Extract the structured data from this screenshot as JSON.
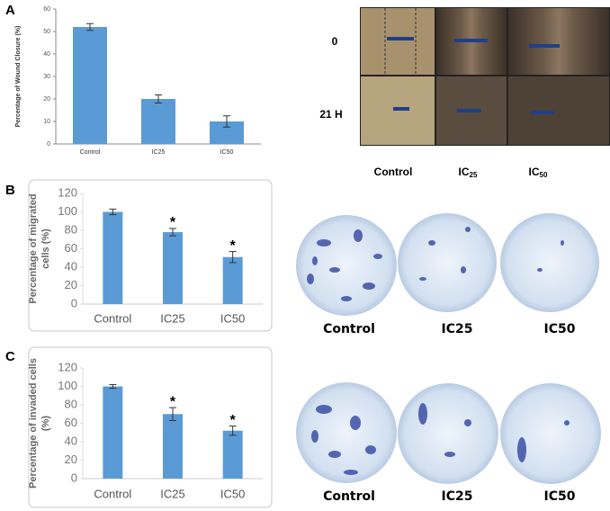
{
  "chart_data": [
    {
      "type": "bar",
      "ylabel": "Percentage of Wound Closure (%)",
      "categories": [
        "Control",
        "IC25",
        "IC50"
      ],
      "values": [
        52,
        20,
        10
      ],
      "errors": [
        1.5,
        1.8,
        2.5
      ],
      "color": "#5b9bd5",
      "ylim": [
        0,
        60
      ],
      "yticks": [
        0,
        10,
        20,
        30,
        40,
        50,
        60
      ]
    },
    {
      "type": "bar",
      "ylabel": [
        "Percentage of migrated",
        "cells (%)"
      ],
      "categories": [
        "Control",
        "IC25",
        "IC50"
      ],
      "values": [
        100,
        78,
        51
      ],
      "errors": [
        3,
        4,
        6
      ],
      "significance": [
        null,
        "*",
        "*"
      ],
      "color": "#5b9bd5",
      "ylim": [
        0,
        120
      ],
      "yticks": [
        0,
        20,
        40,
        60,
        80,
        100,
        120
      ]
    },
    {
      "type": "bar",
      "ylabel": [
        "Percentage of invaded cells",
        "(%)"
      ],
      "categories": [
        "Control",
        "IC25",
        "IC50"
      ],
      "values": [
        100,
        70,
        52
      ],
      "errors": [
        2,
        7,
        5
      ],
      "significance": [
        null,
        "*",
        "*"
      ],
      "color": "#5b9bd5",
      "ylim": [
        0,
        120
      ],
      "yticks": [
        0,
        20,
        40,
        60,
        80,
        100,
        120
      ]
    }
  ],
  "panels": [
    {
      "letter": "A",
      "row_labels": [
        "0",
        "21 H"
      ],
      "column_labels": [
        "Control",
        {
          "base": "IC",
          "sub": "25"
        },
        {
          "base": "IC",
          "sub": "50"
        }
      ]
    },
    {
      "letter": "B",
      "column_labels": [
        "Control",
        "IC25",
        "IC50"
      ]
    },
    {
      "letter": "C",
      "column_labels": [
        "Control",
        "IC25",
        "IC50"
      ]
    }
  ]
}
